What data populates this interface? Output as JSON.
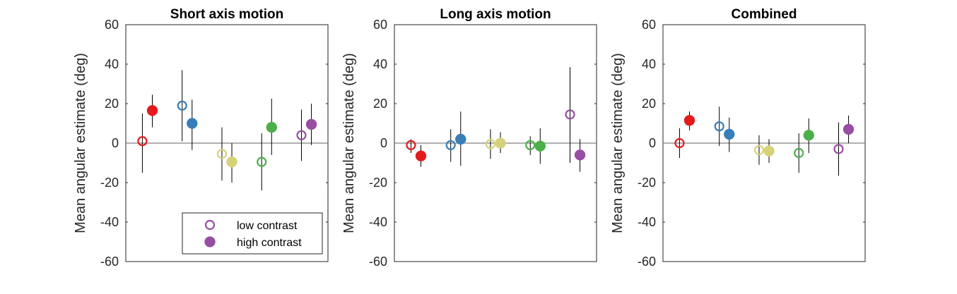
{
  "chart_data": [
    {
      "type": "scatter",
      "title": "Short axis motion",
      "ylabel": "Mean angular estimate (deg)",
      "xlabel": "",
      "ylim": [
        -60,
        60
      ],
      "yticks": [
        -60,
        -40,
        -20,
        0,
        20,
        40,
        60
      ],
      "reference_line_y": 0,
      "legend": {
        "placement": "bottom-right",
        "entries": [
          "low contrast",
          "high contrast"
        ]
      },
      "points": [
        {
          "color_group": "red",
          "contrast": "low",
          "x": 1,
          "y": 1,
          "err_low": -15,
          "err_high": 15
        },
        {
          "color_group": "red",
          "contrast": "high",
          "x": 1.3,
          "y": 16.5,
          "err_low": 8,
          "err_high": 24.5
        },
        {
          "color_group": "blue",
          "contrast": "low",
          "x": 2.2,
          "y": 19,
          "err_low": 1,
          "err_high": 37
        },
        {
          "color_group": "blue",
          "contrast": "high",
          "x": 2.5,
          "y": 10,
          "err_low": -3.5,
          "err_high": 22
        },
        {
          "color_group": "yellow",
          "contrast": "low",
          "x": 3.4,
          "y": -5.5,
          "err_low": -19,
          "err_high": 8
        },
        {
          "color_group": "yellow",
          "contrast": "high",
          "x": 3.7,
          "y": -9.5,
          "err_low": -20,
          "err_high": 0
        },
        {
          "color_group": "green",
          "contrast": "low",
          "x": 4.6,
          "y": -9.5,
          "err_low": -24,
          "err_high": 5
        },
        {
          "color_group": "green",
          "contrast": "high",
          "x": 4.9,
          "y": 8,
          "err_low": -6,
          "err_high": 22.5
        },
        {
          "color_group": "purple",
          "contrast": "low",
          "x": 5.8,
          "y": 4,
          "err_low": -9,
          "err_high": 17
        },
        {
          "color_group": "purple",
          "contrast": "high",
          "x": 6.1,
          "y": 9.5,
          "err_low": -1,
          "err_high": 20
        }
      ]
    },
    {
      "type": "scatter",
      "title": "Long axis motion",
      "ylabel": "Mean angular estimate (deg)",
      "xlabel": "",
      "ylim": [
        -60,
        60
      ],
      "yticks": [
        -60,
        -40,
        -20,
        0,
        20,
        40,
        60
      ],
      "reference_line_y": 0,
      "points": [
        {
          "color_group": "red",
          "contrast": "low",
          "x": 1,
          "y": -1,
          "err_low": -5,
          "err_high": 2
        },
        {
          "color_group": "red",
          "contrast": "high",
          "x": 1.3,
          "y": -6.5,
          "err_low": -12,
          "err_high": -1
        },
        {
          "color_group": "blue",
          "contrast": "low",
          "x": 2.2,
          "y": -1,
          "err_low": -9.5,
          "err_high": 7
        },
        {
          "color_group": "blue",
          "contrast": "high",
          "x": 2.5,
          "y": 2,
          "err_low": -11.5,
          "err_high": 16
        },
        {
          "color_group": "yellow",
          "contrast": "low",
          "x": 3.4,
          "y": -0.5,
          "err_low": -8,
          "err_high": 7
        },
        {
          "color_group": "yellow",
          "contrast": "high",
          "x": 3.7,
          "y": 0,
          "err_low": -5,
          "err_high": 5.5
        },
        {
          "color_group": "green",
          "contrast": "low",
          "x": 4.6,
          "y": -1,
          "err_low": -6,
          "err_high": 3.5
        },
        {
          "color_group": "green",
          "contrast": "high",
          "x": 4.9,
          "y": -1.5,
          "err_low": -10.5,
          "err_high": 7.5
        },
        {
          "color_group": "purple",
          "contrast": "low",
          "x": 5.8,
          "y": 14.5,
          "err_low": -10,
          "err_high": 38.5
        },
        {
          "color_group": "purple",
          "contrast": "high",
          "x": 6.1,
          "y": -6,
          "err_low": -14.5,
          "err_high": 2
        }
      ]
    },
    {
      "type": "scatter",
      "title": "Combined",
      "ylabel": "Mean angular estimate (deg)",
      "xlabel": "",
      "ylim": [
        -60,
        60
      ],
      "yticks": [
        -60,
        -40,
        -20,
        0,
        20,
        40,
        60
      ],
      "reference_line_y": 0,
      "points": [
        {
          "color_group": "red",
          "contrast": "low",
          "x": 1,
          "y": 0,
          "err_low": -7.5,
          "err_high": 7.5
        },
        {
          "color_group": "red",
          "contrast": "high",
          "x": 1.3,
          "y": 11.5,
          "err_low": 6.5,
          "err_high": 16
        },
        {
          "color_group": "blue",
          "contrast": "low",
          "x": 2.2,
          "y": 8.5,
          "err_low": -1.5,
          "err_high": 18.5
        },
        {
          "color_group": "blue",
          "contrast": "high",
          "x": 2.5,
          "y": 4.5,
          "err_low": -4.5,
          "err_high": 13
        },
        {
          "color_group": "yellow",
          "contrast": "low",
          "x": 3.4,
          "y": -3.5,
          "err_low": -11,
          "err_high": 4
        },
        {
          "color_group": "yellow",
          "contrast": "high",
          "x": 3.7,
          "y": -4,
          "err_low": -10,
          "err_high": 2
        },
        {
          "color_group": "green",
          "contrast": "low",
          "x": 4.6,
          "y": -5,
          "err_low": -15,
          "err_high": 5
        },
        {
          "color_group": "green",
          "contrast": "high",
          "x": 4.9,
          "y": 4,
          "err_low": -5,
          "err_high": 12.5
        },
        {
          "color_group": "purple",
          "contrast": "low",
          "x": 5.8,
          "y": -3,
          "err_low": -16.5,
          "err_high": 10.5
        },
        {
          "color_group": "purple",
          "contrast": "high",
          "x": 6.1,
          "y": 7,
          "err_low": 0,
          "err_high": 14
        }
      ]
    }
  ],
  "colors": {
    "red": "#e41a1c",
    "blue": "#377eb8",
    "yellow": "#d6d27a",
    "green": "#4daf4a",
    "purple": "#984ea3",
    "axis": "#262626",
    "errorbar": "#000000",
    "zeroline": "#808080"
  },
  "x_range": [
    0.5,
    6.6
  ]
}
